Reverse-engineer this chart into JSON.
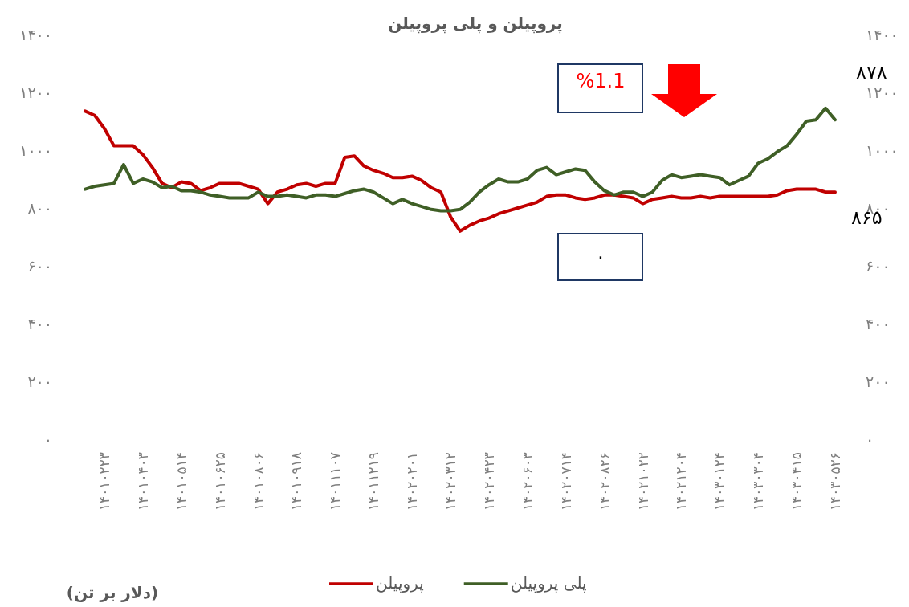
{
  "chart_data": {
    "type": "line",
    "title": "پروپیلن و پلی پروپیلن",
    "categories": [
      null,
      null,
      "۱۴۰۱۰۲۲۳",
      null,
      null,
      null,
      "۱۴۰۱۰۴۰۳",
      null,
      null,
      null,
      "۱۴۰۱۰۵۱۴",
      null,
      null,
      null,
      "۱۴۰۱۰۶۲۵",
      null,
      null,
      null,
      "۱۴۰۱۰۸۰۶",
      null,
      null,
      null,
      "۱۴۰۱۰۹۱۸",
      null,
      null,
      null,
      "۱۴۰۱۱۱۰۷",
      null,
      null,
      null,
      "۱۴۰۱۱۲۱۹",
      null,
      null,
      null,
      "۱۴۰۲۰۲۰۱",
      null,
      null,
      null,
      "۱۴۰۲۰۳۱۲",
      null,
      null,
      null,
      "۱۴۰۲۰۴۲۳",
      null,
      null,
      null,
      "۱۴۰۲۰۶۰۳",
      null,
      null,
      null,
      "۱۴۰۲۰۷۱۴",
      null,
      null,
      null,
      "۱۴۰۲۰۸۲۶",
      null,
      null,
      null,
      "۱۴۰۲۱۰۲۲",
      null,
      null,
      null,
      "۱۴۰۲۱۲۰۴",
      null,
      null,
      null,
      "۱۴۰۳۰۱۲۴",
      null,
      null,
      null,
      "۱۴۰۳۰۳۰۴",
      null,
      null,
      null,
      "۱۴۰۳۰۴۱۵",
      null,
      null,
      null,
      "۱۴۰۳۰۵۲۶"
    ],
    "series": [
      {
        "name": "پروپیلن",
        "color": "#c00000",
        "values": [
          1135,
          1120,
          1075,
          1015,
          1015,
          1015,
          985,
          940,
          885,
          870,
          890,
          885,
          860,
          870,
          885,
          885,
          885,
          875,
          865,
          815,
          855,
          865,
          880,
          885,
          875,
          885,
          885,
          975,
          980,
          945,
          930,
          920,
          905,
          905,
          910,
          895,
          870,
          855,
          770,
          720,
          740,
          755,
          765,
          780,
          790,
          800,
          810,
          820,
          840,
          845,
          845,
          835,
          830,
          835,
          845,
          845,
          840,
          835,
          815,
          830,
          835,
          840,
          835,
          835,
          840,
          835,
          840,
          840,
          840,
          840,
          840,
          840,
          845,
          860,
          865,
          865,
          865,
          855,
          855
        ]
      },
      {
        "name": "پلی پروپیلن",
        "color": "#3f5f26",
        "values": [
          865,
          875,
          880,
          885,
          950,
          885,
          900,
          890,
          870,
          875,
          860,
          860,
          855,
          845,
          840,
          835,
          835,
          835,
          855,
          840,
          840,
          845,
          840,
          835,
          845,
          845,
          840,
          850,
          860,
          865,
          855,
          835,
          815,
          830,
          815,
          805,
          795,
          790,
          790,
          795,
          820,
          855,
          880,
          900,
          890,
          890,
          900,
          930,
          940,
          915,
          925,
          935,
          930,
          890,
          860,
          845,
          855,
          855,
          840,
          855,
          895,
          915,
          905,
          910,
          915,
          910,
          905,
          880,
          895,
          910,
          955,
          970,
          995,
          1015,
          1055,
          1100,
          1105,
          1145,
          1105
        ]
      }
    ],
    "ylim": [
      0,
      1400
    ],
    "yticks": [
      {
        "value": 0,
        "label": "۰"
      },
      {
        "value": 200,
        "label": "۲۰۰"
      },
      {
        "value": 400,
        "label": "۴۰۰"
      },
      {
        "value": 600,
        "label": "۶۰۰"
      },
      {
        "value": 800,
        "label": "۸۰۰"
      },
      {
        "value": 1000,
        "label": "۱۰۰۰"
      },
      {
        "value": 1200,
        "label": "۱۲۰۰"
      },
      {
        "value": 1400,
        "label": "۱۴۰۰"
      }
    ],
    "y2lim": [
      0,
      1400
    ],
    "y2ticks": [
      {
        "value": 0,
        "label": "۰"
      },
      {
        "value": 200,
        "label": "۲۰۰"
      },
      {
        "value": 400,
        "label": "۴۰۰"
      },
      {
        "value": 600,
        "label": "۶۰۰"
      },
      {
        "value": 800,
        "label": "۸۰۰"
      },
      {
        "value": 1000,
        "label": "۱۰۰۰"
      },
      {
        "value": 1200,
        "label": "۱۲۰۰"
      },
      {
        "value": 1400,
        "label": "۱۴۰۰"
      }
    ],
    "legend": "bottom",
    "annotations": [
      "%1.1",
      "۰",
      "۸۷۸",
      "۸۶۵",
      "(دلار بر تن)"
    ]
  }
}
